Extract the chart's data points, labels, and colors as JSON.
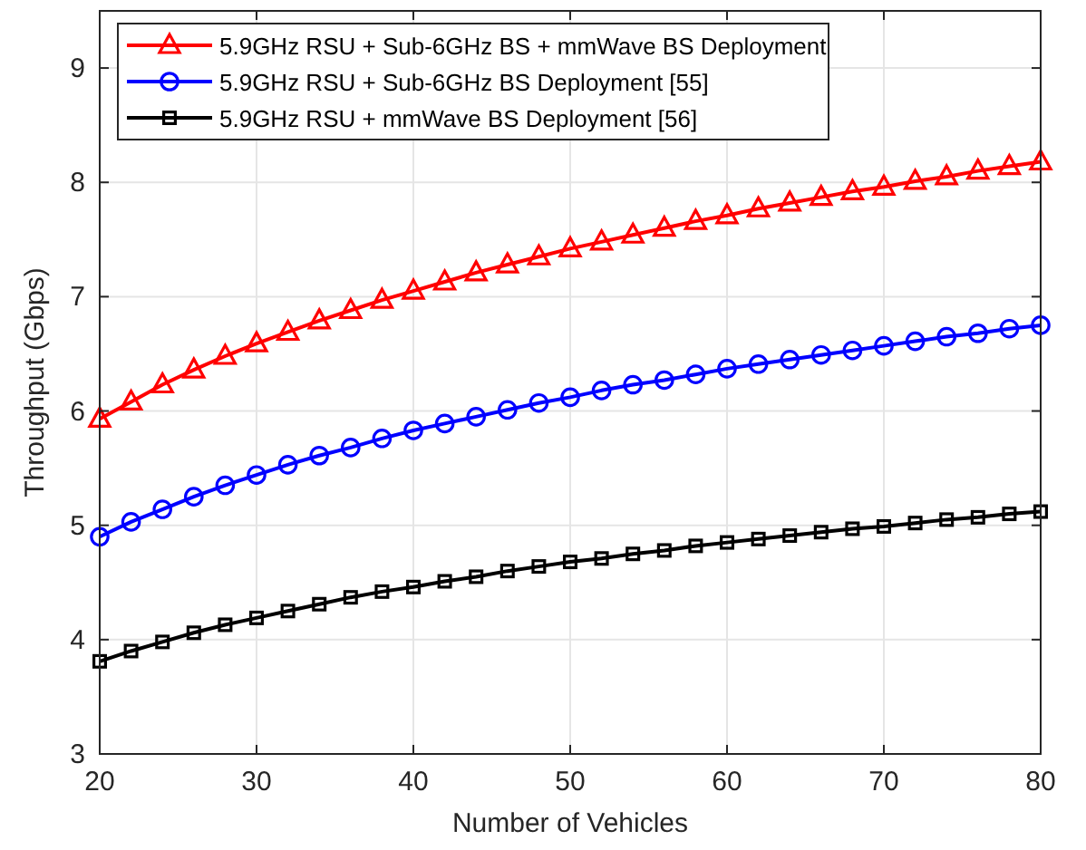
{
  "chart_data": {
    "type": "line",
    "xlabel": "Number of Vehicles",
    "ylabel": "Throughput (Gbps)",
    "x": [
      20,
      22,
      24,
      26,
      28,
      30,
      32,
      34,
      36,
      38,
      40,
      42,
      44,
      46,
      48,
      50,
      52,
      54,
      56,
      58,
      60,
      62,
      64,
      66,
      68,
      70,
      72,
      74,
      76,
      78,
      80
    ],
    "series": [
      {
        "name": "5.9GHz RSU + Sub-6GHz BS + mmWave BS Deployment",
        "color": "#ff0000",
        "marker": "triangle",
        "values": [
          5.93,
          6.08,
          6.23,
          6.36,
          6.48,
          6.59,
          6.69,
          6.79,
          6.88,
          6.97,
          7.05,
          7.13,
          7.21,
          7.28,
          7.35,
          7.42,
          7.48,
          7.54,
          7.6,
          7.66,
          7.71,
          7.77,
          7.82,
          7.87,
          7.92,
          7.96,
          8.01,
          8.05,
          8.1,
          8.14,
          8.18
        ]
      },
      {
        "name": "5.9GHz RSU + Sub-6GHz BS Deployment [55]",
        "color": "#0000ff",
        "marker": "circle",
        "values": [
          4.9,
          5.03,
          5.14,
          5.25,
          5.35,
          5.44,
          5.53,
          5.61,
          5.68,
          5.76,
          5.83,
          5.89,
          5.95,
          6.01,
          6.07,
          6.12,
          6.18,
          6.23,
          6.27,
          6.32,
          6.37,
          6.41,
          6.45,
          6.49,
          6.53,
          6.57,
          6.61,
          6.65,
          6.68,
          6.72,
          6.75
        ]
      },
      {
        "name": "5.9GHz RSU + mmWave BS Deployment [56]",
        "color": "#000000",
        "marker": "square",
        "values": [
          3.81,
          3.9,
          3.98,
          4.06,
          4.13,
          4.19,
          4.25,
          4.31,
          4.37,
          4.42,
          4.46,
          4.51,
          4.55,
          4.6,
          4.64,
          4.68,
          4.71,
          4.75,
          4.78,
          4.82,
          4.85,
          4.88,
          4.91,
          4.94,
          4.97,
          4.99,
          5.02,
          5.05,
          5.07,
          5.1,
          5.12
        ]
      }
    ],
    "xlim": [
      20,
      80
    ],
    "xticks": [
      20,
      30,
      40,
      50,
      60,
      70,
      80
    ],
    "ylim": [
      3,
      9.5
    ],
    "yticks": [
      3,
      4,
      5,
      6,
      7,
      8,
      9
    ],
    "grid": true,
    "legend": "top left",
    "line_style": "solid"
  }
}
